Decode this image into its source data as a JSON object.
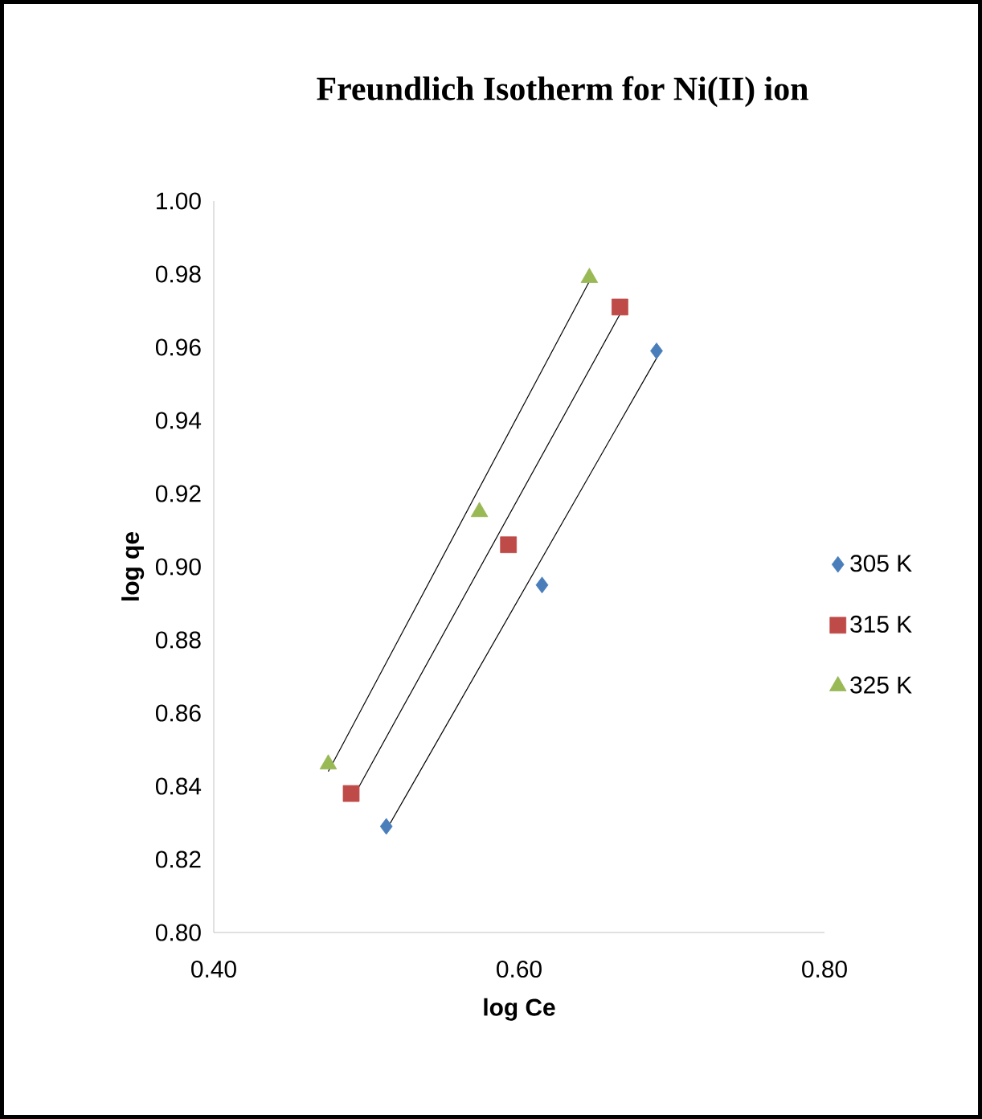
{
  "chart_data": {
    "type": "scatter",
    "title": "Freundlich Isotherm for Ni(II) ion",
    "xlabel": "log Ce",
    "ylabel": "log qe",
    "xlim": [
      0.4,
      0.8
    ],
    "xticks": [
      {
        "value": 0.4,
        "label": "0.40"
      },
      {
        "value": 0.6,
        "label": "0.60"
      },
      {
        "value": 0.8,
        "label": "0.80"
      }
    ],
    "ylim": [
      0.8,
      1.0
    ],
    "yticks": [
      {
        "value": 0.8,
        "label": "0.80"
      },
      {
        "value": 0.82,
        "label": "0.82"
      },
      {
        "value": 0.84,
        "label": "0.84"
      },
      {
        "value": 0.86,
        "label": "0.86"
      },
      {
        "value": 0.88,
        "label": "0.88"
      },
      {
        "value": 0.9,
        "label": "0.90"
      },
      {
        "value": 0.92,
        "label": "0.92"
      },
      {
        "value": 0.94,
        "label": "0.94"
      },
      {
        "value": 0.96,
        "label": "0.96"
      },
      {
        "value": 0.98,
        "label": "0.98"
      },
      {
        "value": 1.0,
        "label": "1.00"
      }
    ],
    "legend": "right",
    "series": [
      {
        "name": "305 K",
        "marker": "diamond",
        "color": "#4a7ebb",
        "x": [
          0.513,
          0.615,
          0.69
        ],
        "values": [
          0.829,
          0.895,
          0.959
        ]
      },
      {
        "name": "315 K",
        "marker": "square",
        "color": "#be4b48",
        "x": [
          0.49,
          0.593,
          0.666
        ],
        "values": [
          0.838,
          0.906,
          0.971
        ]
      },
      {
        "name": "325 K",
        "marker": "triangle",
        "color": "#98b954",
        "x": [
          0.475,
          0.574,
          0.646
        ],
        "values": [
          0.846,
          0.915,
          0.979
        ]
      },
      {
        "type": "line",
        "marker": "none",
        "color": "#000000",
        "x": [
          0.513,
          0.69
        ],
        "values": [
          0.828,
          0.957
        ]
      },
      {
        "type": "line",
        "marker": "none",
        "color": "#000000",
        "x": [
          0.49,
          0.666
        ],
        "values": [
          0.836,
          0.969
        ]
      },
      {
        "type": "line",
        "marker": "none",
        "color": "#000000",
        "x": [
          0.475,
          0.646
        ],
        "values": [
          0.844,
          0.978
        ]
      }
    ]
  }
}
